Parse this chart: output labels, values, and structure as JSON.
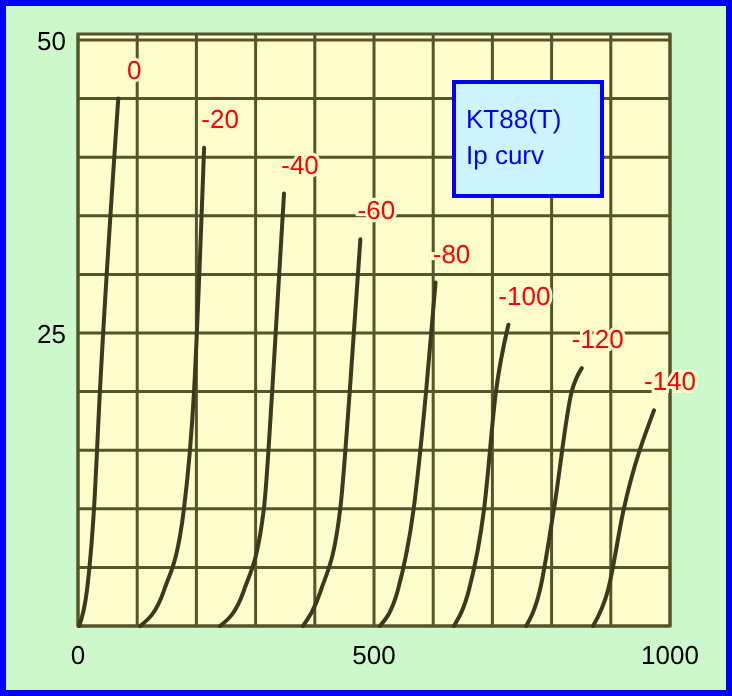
{
  "chart_data": {
    "type": "line",
    "xlim": [
      0,
      1000
    ],
    "ylim": [
      0,
      50
    ],
    "xticks": [
      0,
      {
        "value": 100,
        "label": null
      },
      {
        "value": 200,
        "label": null
      },
      {
        "value": 300,
        "label": null
      },
      {
        "value": 400,
        "label": null
      },
      500,
      {
        "value": 600,
        "label": null
      },
      {
        "value": 700,
        "label": null
      },
      {
        "value": 800,
        "label": null
      },
      {
        "value": 900,
        "label": null
      },
      1000
    ],
    "yticks": [
      {
        "value": 0,
        "label": null
      },
      {
        "value": 5,
        "label": null
      },
      {
        "value": 10,
        "label": null
      },
      {
        "value": 15,
        "label": null
      },
      {
        "value": 20,
        "label": null
      },
      25,
      {
        "value": 30,
        "label": null
      },
      {
        "value": 35,
        "label": null
      },
      {
        "value": 40,
        "label": null
      },
      {
        "value": 45,
        "label": null
      },
      50
    ],
    "grid": true,
    "marker": "none",
    "line_style": "solid",
    "annotations": [
      "KT88(T)\nIp curv"
    ],
    "series": [
      {
        "name": "0",
        "color": "#3a3a1e",
        "x": [
          2,
          15,
          27,
          37,
          68
        ],
        "values": [
          0,
          3,
          10,
          20,
          45
        ]
      },
      {
        "name": "-20",
        "color": "#3a3a1e",
        "x": [
          105,
          145,
          179,
          196,
          213
        ],
        "values": [
          0,
          3,
          10,
          20,
          40.8
        ]
      },
      {
        "name": "-40",
        "color": "#3a3a1e",
        "x": [
          240,
          280,
          314,
          328,
          348
        ],
        "values": [
          0,
          3,
          10,
          20,
          36.9
        ]
      },
      {
        "name": "-60",
        "color": "#3a3a1e",
        "x": [
          380,
          410,
          443,
          459,
          477
        ],
        "values": [
          0,
          3,
          10,
          20,
          33
        ]
      },
      {
        "name": "-80",
        "color": "#3a3a1e",
        "x": [
          510,
          540,
          567,
          588,
          604
        ],
        "values": [
          0,
          3,
          10,
          20,
          29.3
        ]
      },
      {
        "name": "-100",
        "color": "#3a3a1e",
        "x": [
          635,
          660,
          686,
          706,
          727
        ],
        "values": [
          0,
          3,
          10,
          20,
          25.7
        ]
      },
      {
        "name": "-120",
        "color": "#3a3a1e",
        "x": [
          757,
          780,
          804,
          834,
          851
        ],
        "values": [
          0,
          3,
          10,
          20,
          22
        ]
      },
      {
        "name": "-140",
        "color": "#3a3a1e",
        "x": [
          870,
          895,
          922,
          973
        ],
        "values": [
          0,
          3,
          10,
          18.4
        ]
      }
    ]
  }
}
